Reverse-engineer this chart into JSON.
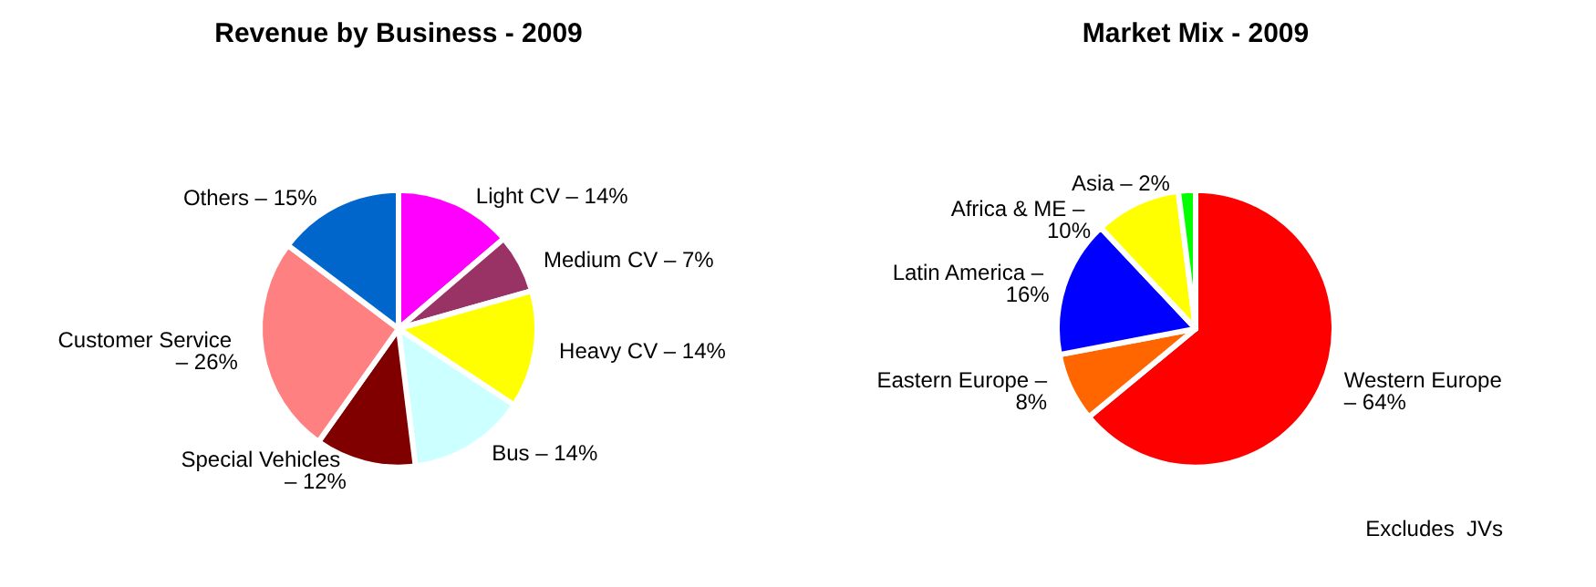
{
  "chart_data": [
    {
      "type": "pie",
      "title": "Revenue by Business - 2009",
      "categories": [
        "Light CV – 14%",
        "Medium CV – 7%",
        "Heavy CV – 14%",
        "Bus – 14%",
        "Special Vehicles – 12%",
        "Customer Service – 26%",
        "Others – 15%"
      ],
      "values": [
        14,
        7,
        14,
        14,
        12,
        26,
        15
      ],
      "colors": [
        "#ff00ff",
        "#993366",
        "#ffff00",
        "#ccffff",
        "#800000",
        "#ff8080",
        "#0066cc"
      ]
    },
    {
      "type": "pie",
      "title": "Market Mix - 2009",
      "categories": [
        "Western Europe – 64%",
        "Eastern Europe – 8%",
        "Latin America – 16%",
        "Africa & ME – 10%",
        "Asia – 2%"
      ],
      "values": [
        64,
        8,
        16,
        10,
        2
      ],
      "colors": [
        "#ff0000",
        "#ff6600",
        "#0000ff",
        "#ffff00",
        "#00ff00"
      ],
      "annotations": [
        "Excludes  JVs"
      ]
    }
  ]
}
